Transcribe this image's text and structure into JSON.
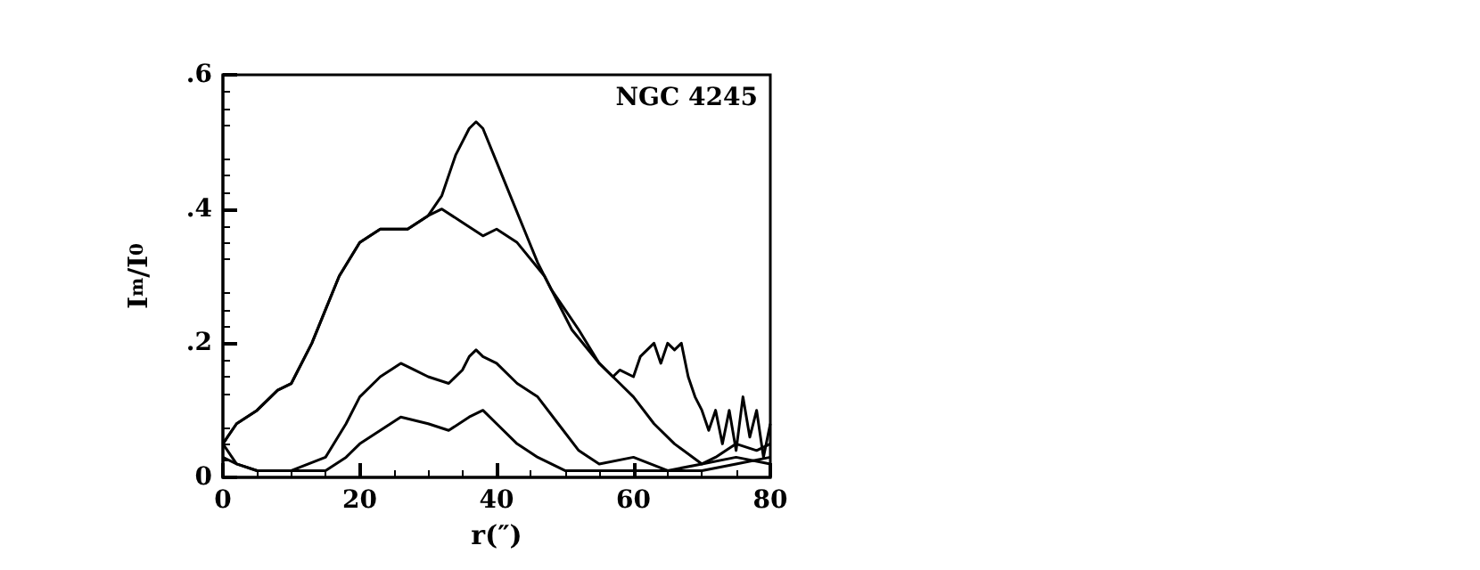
{
  "chart_data": {
    "type": "line",
    "xlabel": "r(″)",
    "ylabel": "I$_{m}$/I$_{0}$",
    "annotations": [
      "NGC 4245"
    ],
    "xlim": [
      0,
      80
    ],
    "xticks": [
      0,
      20,
      40,
      60,
      80
    ],
    "ylim": [
      0,
      0.6
    ],
    "yticks": [
      0,
      {
        "value": 0.2,
        "label": ".2"
      },
      {
        "value": 0.4,
        "label": ".4"
      },
      {
        "value": 0.6,
        "label": ".6"
      }
    ],
    "grid": false,
    "marker": "none",
    "line_style": "solid",
    "series": [
      {
        "color": "#000000",
        "x": [
          0,
          2,
          5,
          8,
          10,
          13,
          15,
          17,
          20,
          23,
          25,
          27,
          30,
          32,
          34,
          36,
          37,
          38,
          40,
          42,
          44,
          46,
          48,
          50,
          52,
          55,
          57,
          58,
          60,
          61,
          62,
          63,
          64,
          65,
          66,
          67,
          68,
          69,
          70,
          71,
          72,
          73,
          74,
          75,
          76,
          77,
          78,
          79,
          80
        ],
        "values": [
          0.05,
          0.08,
          0.1,
          0.13,
          0.14,
          0.2,
          0.25,
          0.3,
          0.35,
          0.37,
          0.37,
          0.37,
          0.39,
          0.42,
          0.48,
          0.52,
          0.53,
          0.52,
          0.47,
          0.42,
          0.37,
          0.32,
          0.28,
          0.25,
          0.22,
          0.17,
          0.15,
          0.16,
          0.15,
          0.18,
          0.19,
          0.2,
          0.17,
          0.2,
          0.19,
          0.2,
          0.15,
          0.12,
          0.1,
          0.07,
          0.1,
          0.05,
          0.1,
          0.04,
          0.12,
          0.06,
          0.1,
          0.03,
          0.08
        ]
      },
      {
        "color": "#000000",
        "x": [
          0,
          2,
          5,
          8,
          10,
          13,
          15,
          17,
          20,
          23,
          25,
          27,
          30,
          32,
          35,
          38,
          40,
          43,
          47,
          51,
          55,
          58,
          60,
          63,
          66,
          70,
          75,
          80
        ],
        "values": [
          0.05,
          0.08,
          0.1,
          0.13,
          0.14,
          0.2,
          0.25,
          0.3,
          0.35,
          0.37,
          0.37,
          0.37,
          0.39,
          0.4,
          0.38,
          0.36,
          0.37,
          0.35,
          0.3,
          0.22,
          0.17,
          0.14,
          0.12,
          0.08,
          0.05,
          0.02,
          0.03,
          0.02
        ]
      },
      {
        "color": "#000000",
        "x": [
          0,
          2,
          5,
          10,
          15,
          18,
          20,
          23,
          26,
          28,
          30,
          33,
          35,
          36,
          37,
          38,
          40,
          43,
          46,
          49,
          52,
          55,
          60,
          65,
          70,
          72,
          75,
          78,
          80
        ],
        "values": [
          0.05,
          0.02,
          0.01,
          0.01,
          0.03,
          0.08,
          0.12,
          0.15,
          0.17,
          0.16,
          0.15,
          0.14,
          0.16,
          0.18,
          0.19,
          0.18,
          0.17,
          0.14,
          0.12,
          0.08,
          0.04,
          0.02,
          0.03,
          0.01,
          0.02,
          0.03,
          0.05,
          0.04,
          0.05
        ]
      },
      {
        "color": "#000000",
        "x": [
          0,
          2,
          5,
          10,
          15,
          18,
          20,
          23,
          26,
          30,
          33,
          36,
          38,
          40,
          43,
          46,
          50,
          55,
          60,
          65,
          70,
          75,
          80
        ],
        "values": [
          0.03,
          0.02,
          0.01,
          0.01,
          0.01,
          0.03,
          0.05,
          0.07,
          0.09,
          0.08,
          0.07,
          0.09,
          0.1,
          0.08,
          0.05,
          0.03,
          0.01,
          0.01,
          0.01,
          0.01,
          0.01,
          0.02,
          0.03
        ]
      }
    ]
  }
}
